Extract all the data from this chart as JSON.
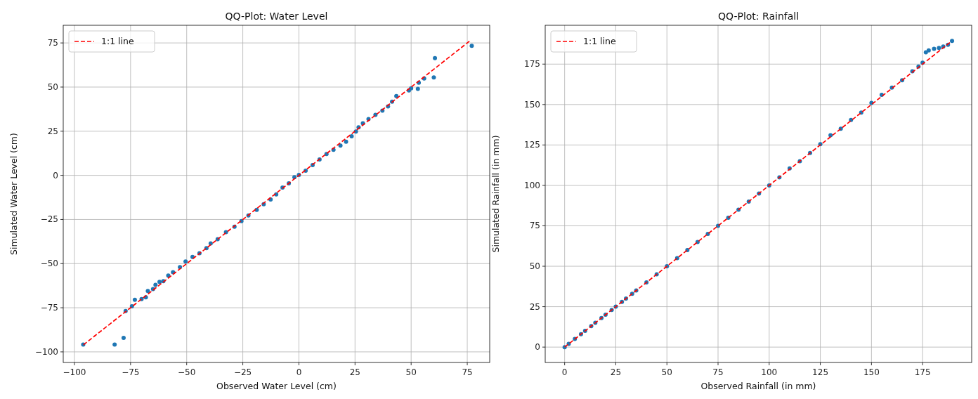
{
  "chart_data": [
    {
      "type": "scatter",
      "title": "QQ-Plot: Water Level",
      "xlabel": "Observed Water Level (cm)",
      "ylabel": "Simulated Water Level (cm)",
      "xlim": [
        -105,
        85
      ],
      "ylim": [
        -106,
        85
      ],
      "xticks": [
        -100,
        -75,
        -50,
        -25,
        0,
        25,
        50,
        75
      ],
      "yticks": [
        -100,
        -75,
        -50,
        -25,
        0,
        25,
        50,
        75
      ],
      "grid": true,
      "legend": "top left",
      "series": [
        {
          "marker": "circle",
          "color": "#1f77b4",
          "x": [
            -96.1,
            -82.1,
            -78.1,
            -77.2,
            -74.4,
            -73.1,
            -70.1,
            -68.2,
            -67.3,
            -65.0,
            -63.9,
            -62.1,
            -60.4,
            -58.2,
            -56.1,
            -53.0,
            -50.5,
            -47.4,
            -44.3,
            -41.2,
            -39.3,
            -36.2,
            -32.5,
            -28.7,
            -25.6,
            -22.5,
            -18.8,
            -15.7,
            -12.6,
            -10.1,
            -7.3,
            -4.5,
            -2.0,
            0.0,
            3.0,
            6.1,
            9.2,
            12.3,
            15.4,
            18.5,
            21.0,
            23.5,
            25.4,
            26.6,
            28.5,
            31.0,
            34.1,
            37.2,
            39.7,
            41.5,
            43.4,
            49.0,
            50.0,
            53.0,
            53.4,
            55.8,
            60.1,
            60.6,
            77.0
          ],
          "values": [
            -95.9,
            -95.9,
            -92.1,
            -76.9,
            -74.2,
            -70.5,
            -70.1,
            -69.1,
            -65.5,
            -64.4,
            -62.0,
            -60.3,
            -59.9,
            -56.8,
            -54.9,
            -52.0,
            -48.8,
            -46.2,
            -44.1,
            -41.2,
            -38.6,
            -36.2,
            -32.2,
            -29.1,
            -25.9,
            -22.7,
            -19.6,
            -16.4,
            -13.7,
            -10.8,
            -6.9,
            -4.5,
            -1.0,
            0.2,
            2.6,
            5.8,
            9.0,
            12.1,
            14.5,
            16.9,
            19.0,
            22.1,
            24.8,
            27.2,
            29.5,
            31.9,
            34.3,
            36.7,
            39.0,
            41.7,
            44.9,
            48.1,
            49.3,
            49.0,
            52.5,
            54.9,
            55.5,
            66.4,
            73.4
          ]
        },
        {
          "type": "line",
          "marker": "none",
          "name": "1:1 line",
          "color": "#ff0000",
          "line_style": "dashed",
          "x": [
            -96,
            76
          ],
          "values": [
            -96,
            76
          ]
        }
      ]
    },
    {
      "type": "scatter",
      "title": "QQ-Plot: Rainfall",
      "xlabel": "Observed Rainfall (in mm)",
      "ylabel": "Simulated Rainfall (in mm)",
      "xlim": [
        -9.5,
        199
      ],
      "ylim": [
        -9.5,
        199
      ],
      "xticks": [
        0,
        25,
        50,
        75,
        100,
        125,
        150,
        175
      ],
      "yticks": [
        0,
        25,
        50,
        75,
        100,
        125,
        150,
        175
      ],
      "grid": true,
      "legend": "top left",
      "series": [
        {
          "marker": "circle",
          "color": "#1f77b4",
          "x": [
            0,
            2,
            5,
            8,
            10,
            13,
            15,
            18,
            20,
            23,
            25,
            28,
            30,
            33,
            35,
            40,
            45,
            50,
            55,
            60,
            65,
            70,
            75,
            80,
            85,
            90,
            95,
            100,
            105,
            110,
            115,
            120,
            125,
            130,
            135,
            140,
            145,
            150,
            155,
            160,
            165,
            170,
            173,
            175,
            176.6,
            178,
            180.6,
            183,
            185.1,
            187.4,
            189.4
          ],
          "values": [
            0,
            2,
            5,
            8,
            10,
            13,
            15,
            18,
            20,
            23,
            25,
            28,
            30,
            33,
            35,
            40,
            45,
            50,
            55,
            60,
            65,
            70,
            75,
            80,
            85,
            90,
            95,
            100,
            105,
            110.5,
            115,
            120,
            125.5,
            131,
            135,
            140.5,
            145,
            151,
            156,
            160.5,
            165,
            170.5,
            173.5,
            175.9,
            182.3,
            183.5,
            184.5,
            185,
            185.9,
            186.9,
            189.3
          ]
        },
        {
          "type": "line",
          "marker": "none",
          "name": "1:1 line",
          "color": "#ff0000",
          "line_style": "dashed",
          "x": [
            0,
            188.5
          ],
          "values": [
            0,
            188.5
          ]
        }
      ]
    }
  ]
}
